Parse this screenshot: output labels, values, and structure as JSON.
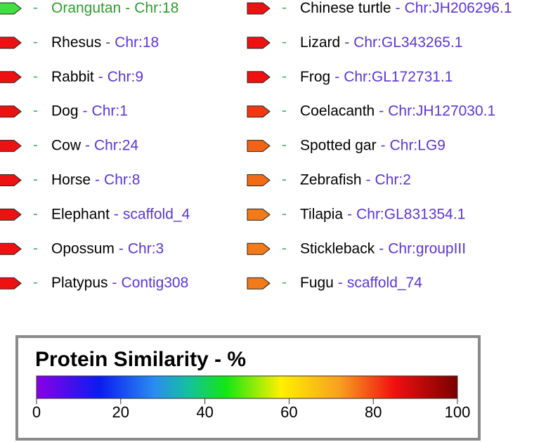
{
  "separator": "-",
  "highlighted_entry": "Orangutan",
  "highlight_color": "#2e9e2e",
  "entries": [
    {
      "name": "Orangutan",
      "location": "Chr:18",
      "arrow_color": "#3fe03f"
    },
    {
      "name": "Rhesus",
      "location": "Chr:18",
      "arrow_color": "#ee1111"
    },
    {
      "name": "Rabbit",
      "location": "Chr:9",
      "arrow_color": "#ee1111"
    },
    {
      "name": "Dog",
      "location": "Chr:1",
      "arrow_color": "#ee1111"
    },
    {
      "name": "Cow",
      "location": "Chr:24",
      "arrow_color": "#ee1111"
    },
    {
      "name": "Horse",
      "location": "Chr:8",
      "arrow_color": "#ee1111"
    },
    {
      "name": "Elephant",
      "location": "scaffold_4",
      "arrow_color": "#ee1111"
    },
    {
      "name": "Opossum",
      "location": "Chr:3",
      "arrow_color": "#ee1111"
    },
    {
      "name": "Platypus",
      "location": "Contig308",
      "arrow_color": "#ee1111"
    },
    {
      "name": "Chinese turtle",
      "location": "Chr:JH206296.1",
      "arrow_color": "#ee1111"
    },
    {
      "name": "Lizard",
      "location": "Chr:GL343265.1",
      "arrow_color": "#ee1111"
    },
    {
      "name": "Frog",
      "location": "Chr:GL172731.1",
      "arrow_color": "#ee1111"
    },
    {
      "name": "Coelacanth",
      "location": "Chr:JH127030.1",
      "arrow_color": "#f03812"
    },
    {
      "name": "Spotted gar",
      "location": "Chr:LG9",
      "arrow_color": "#f26414"
    },
    {
      "name": "Zebrafish",
      "location": "Chr:2",
      "arrow_color": "#f26a14"
    },
    {
      "name": "Tilapia",
      "location": "Chr:GL831354.1",
      "arrow_color": "#f27a18"
    },
    {
      "name": "Stickleback",
      "location": "Chr:groupIII",
      "arrow_color": "#f27a18"
    },
    {
      "name": "Fugu",
      "location": "scaffold_74",
      "arrow_color": "#f27a18"
    }
  ],
  "legend": {
    "title": "Protein Similarity - %",
    "ticks": [
      0,
      20,
      40,
      60,
      80,
      100
    ],
    "range": [
      0,
      100
    ]
  }
}
